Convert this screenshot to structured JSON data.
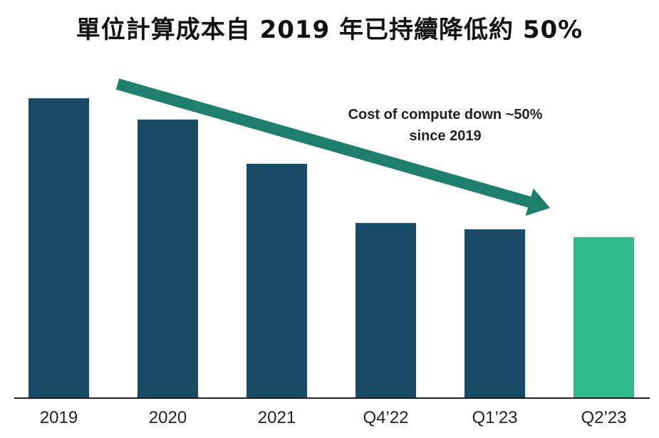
{
  "chart_data": {
    "type": "bar",
    "title": "單位計算成本自 2019 年已持續降低約 50%",
    "categories": [
      "2019",
      "2020",
      "2021",
      "Q4’22",
      "Q1’23",
      "Q2’23"
    ],
    "values": [
      100,
      92.9,
      78.1,
      58.3,
      56.2,
      53.6
    ],
    "ylim": [
      0,
      100
    ],
    "xlabel": "",
    "ylabel": "",
    "grid": false,
    "annotation": [
      "Cost of compute down ~50%",
      "since 2019"
    ],
    "colors": {
      "bar": "#194a66",
      "highlight": "#2fb98a",
      "arrow": "#1f7f6d",
      "axis": "#222222"
    },
    "highlight_index": 5
  }
}
